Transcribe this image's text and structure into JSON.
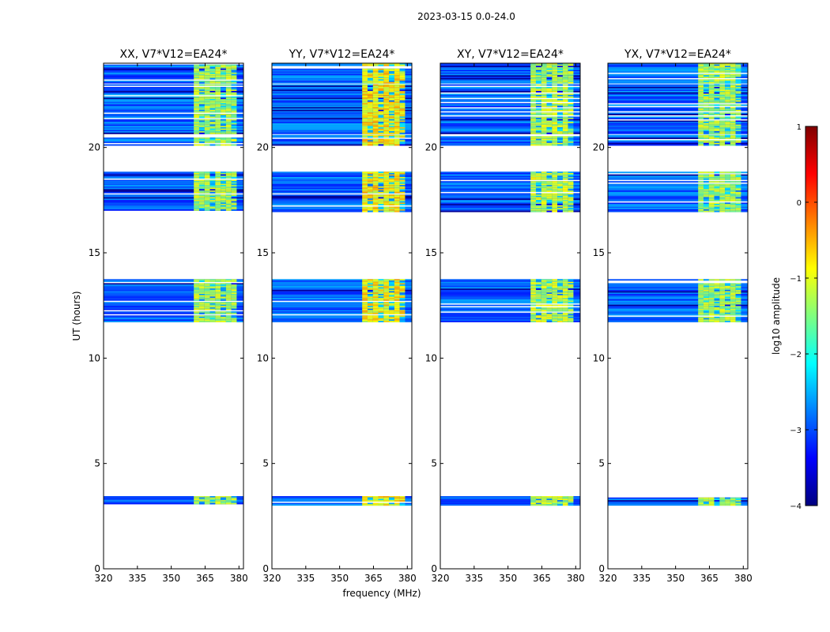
{
  "chart_data": {
    "type": "heatmap",
    "suptitle": "2023-03-15 0.0-24.0",
    "xlabel": "frequency (MHz)",
    "ylabel": "UT (hours)",
    "xlim": [
      320,
      382
    ],
    "ylim": [
      0,
      24
    ],
    "xticks": [
      320,
      335,
      350,
      365,
      380
    ],
    "xtick_labels": [
      "320",
      "335",
      "350",
      "365",
      "380"
    ],
    "yticks": [
      0,
      5,
      10,
      15,
      20
    ],
    "ytick_labels": [
      "0",
      "5",
      "10",
      "15",
      "20"
    ],
    "colormap": "jet",
    "colorbar": {
      "label": "log10 amplitude",
      "range": [
        -4,
        1
      ],
      "ticks": [
        1,
        0,
        -1,
        -2,
        -3,
        -4
      ],
      "tick_labels": [
        "1",
        "0",
        "−1",
        "−2",
        "−3",
        "−4"
      ],
      "colors": [
        "#00007f",
        "#0000ff",
        "#007fff",
        "#00ffff",
        "#7fff7f",
        "#ffff00",
        "#ff7f00",
        "#ff0000",
        "#7f0000"
      ]
    },
    "panels": [
      {
        "title": "XX, V7*V12=EA24*",
        "rfi_level": -1.3
      },
      {
        "title": "YY, V7*V12=EA24*",
        "rfi_level": -0.8
      },
      {
        "title": "XY, V7*V12=EA24*",
        "rfi_level": -1.2
      },
      {
        "title": "YX, V7*V12=EA24*",
        "rfi_level": -1.3
      }
    ],
    "time_blocks_hours": [
      [
        3.05,
        3.45
      ],
      [
        11.75,
        13.75
      ],
      [
        16.95,
        18.85
      ],
      [
        20.1,
        20.6
      ],
      [
        20.7,
        23.0
      ],
      [
        23.05,
        24.0
      ]
    ],
    "rfi_band_MHz": [
      360,
      379
    ],
    "background_level": -2.9
  }
}
